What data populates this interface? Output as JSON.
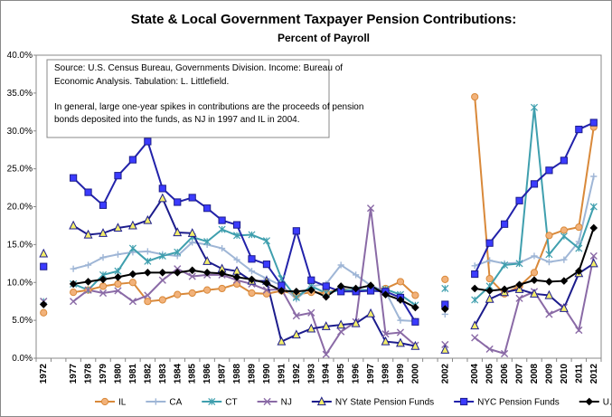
{
  "chart_data": {
    "type": "line",
    "title": "State & Local Government Taxpayer Pension Contributions:",
    "subtitle": "Percent of Payroll",
    "annotations": [
      "Source:  U.S. Census Bureau, Governments Division.  Income:  Bureau of",
      "Economic Analysis.  Tabulation:  L. Littlefield.",
      "In general, large one-year spikes in contributions are the proceeds of pension",
      "bonds deposited into the funds, as NJ in 1997 and IL in 2004."
    ],
    "categories": [
      "1972",
      null,
      "1977",
      "1978",
      "1979",
      "1980",
      "1981",
      "1982",
      "1983",
      "1984",
      "1985",
      "1986",
      "1987",
      "1988",
      "1989",
      "1990",
      "1991",
      "1992",
      "1993",
      "1994",
      "1995",
      "1996",
      "1997",
      "1998",
      "1999",
      "2000",
      null,
      "2002",
      null,
      "2004",
      "2005",
      "2006",
      "2007",
      "2008",
      "2009",
      "2010",
      "2011",
      "2012"
    ],
    "ylim": [
      0,
      40
    ],
    "yticks": [
      {
        "value": 0,
        "label": "0.0%"
      },
      {
        "value": 5,
        "label": "5.0%"
      },
      {
        "value": 10,
        "label": "10.0%"
      },
      {
        "value": 15,
        "label": "15.0%"
      },
      {
        "value": 20,
        "label": "20.0%"
      },
      {
        "value": 25,
        "label": "25.0%"
      },
      {
        "value": 30,
        "label": "30.0%"
      },
      {
        "value": 35,
        "label": "35.0%"
      },
      {
        "value": 40,
        "label": "40.0%"
      }
    ],
    "grid": false,
    "legend": "bottom",
    "series": [
      {
        "name": "IL",
        "color": "#d9893a",
        "marker": "circle",
        "marker_color": "#f2b27a",
        "values": [
          6.0,
          null,
          8.7,
          9.0,
          9.5,
          9.8,
          10.0,
          7.5,
          7.7,
          8.4,
          8.6,
          9.0,
          9.2,
          9.8,
          8.6,
          8.5,
          8.9,
          8.4,
          8.7,
          8.6,
          9.2,
          8.8,
          9.0,
          9.2,
          10.1,
          8.3,
          null,
          10.4,
          null,
          34.5,
          10.5,
          8.5,
          9.5,
          11.3,
          16.2,
          16.9,
          17.3,
          30.5
        ]
      },
      {
        "name": "CA",
        "color": "#9fb6d6",
        "marker": "plus",
        "marker_color": "#9fb6d6",
        "values": [
          7.3,
          null,
          11.8,
          12.3,
          13.3,
          13.7,
          14.0,
          14.1,
          13.7,
          13.5,
          15.3,
          15.0,
          14.5,
          13.0,
          11.5,
          10.5,
          9.6,
          7.8,
          9.5,
          9.8,
          12.3,
          11.0,
          9.6,
          8.8,
          5.0,
          4.9,
          null,
          5.8,
          null,
          12.2,
          12.9,
          12.5,
          12.6,
          13.5,
          12.7,
          13.0,
          15.4,
          24.0
        ]
      },
      {
        "name": "CT",
        "color": "#3f9fae",
        "marker": "star",
        "marker_color": "#3f9fae",
        "values": [
          7.5,
          null,
          9.8,
          9.0,
          11.0,
          11.5,
          14.5,
          12.8,
          13.5,
          14.0,
          16.0,
          15.4,
          17.0,
          16.2,
          16.3,
          15.5,
          10.5,
          8.0,
          9.5,
          8.6,
          9.0,
          9.0,
          9.0,
          9.1,
          8.4,
          7.0,
          null,
          9.2,
          null,
          7.7,
          9.5,
          12.3,
          12.5,
          33.1,
          13.7,
          16.1,
          14.5,
          20.0
        ]
      },
      {
        "name": "NJ",
        "color": "#8a6aa6",
        "marker": "cross",
        "marker_color": "#8a6aa6",
        "values": [
          7.5,
          null,
          7.5,
          9.0,
          8.6,
          8.9,
          7.5,
          8.3,
          10.3,
          11.8,
          10.8,
          11.0,
          11.0,
          10.3,
          9.8,
          9.0,
          9.1,
          5.6,
          6.0,
          0.5,
          3.5,
          4.8,
          19.8,
          3.2,
          3.4,
          1.7,
          null,
          1.8,
          null,
          2.7,
          1.2,
          0.6,
          7.9,
          8.8,
          5.8,
          6.7,
          3.7,
          13.5
        ]
      },
      {
        "name": "NY State Pension Funds",
        "color": "#1c1c8c",
        "marker": "triangle",
        "marker_color": "#f3ee6a",
        "values": [
          13.8,
          null,
          17.5,
          16.3,
          16.5,
          17.2,
          17.5,
          18.2,
          21.1,
          16.6,
          16.5,
          12.8,
          11.8,
          11.5,
          10.2,
          10.2,
          2.2,
          3.1,
          3.9,
          4.2,
          4.4,
          4.6,
          5.9,
          2.2,
          2.0,
          1.6,
          null,
          1.1,
          null,
          4.3,
          7.8,
          8.7,
          9.1,
          8.5,
          8.3,
          6.6,
          11.2,
          12.5
        ]
      },
      {
        "name": "NYC Pension Funds",
        "color": "#2222aa",
        "marker": "square",
        "marker_color": "#3b3bff",
        "values": [
          12.1,
          null,
          23.8,
          21.9,
          20.2,
          24.1,
          26.2,
          28.6,
          22.4,
          20.6,
          21.2,
          19.8,
          18.2,
          17.6,
          13.1,
          12.4,
          9.6,
          16.8,
          10.3,
          9.5,
          8.8,
          8.8,
          8.9,
          8.8,
          8.0,
          4.8,
          null,
          7.1,
          null,
          11.1,
          15.2,
          17.7,
          20.8,
          23.0,
          24.8,
          26.1,
          30.2,
          31.1
        ]
      },
      {
        "name": "U.S",
        "color": "#000000",
        "marker": "diamond",
        "marker_color": "#000000",
        "values": [
          7.1,
          null,
          9.8,
          10.1,
          10.4,
          10.7,
          11.1,
          11.3,
          11.3,
          11.3,
          11.6,
          11.3,
          11.2,
          10.7,
          10.4,
          9.9,
          8.9,
          8.8,
          9.0,
          8.1,
          9.5,
          9.2,
          9.6,
          8.4,
          7.7,
          6.7,
          null,
          6.5,
          null,
          9.2,
          8.9,
          9.1,
          9.7,
          10.3,
          10.1,
          10.2,
          11.5,
          17.2
        ]
      }
    ]
  }
}
